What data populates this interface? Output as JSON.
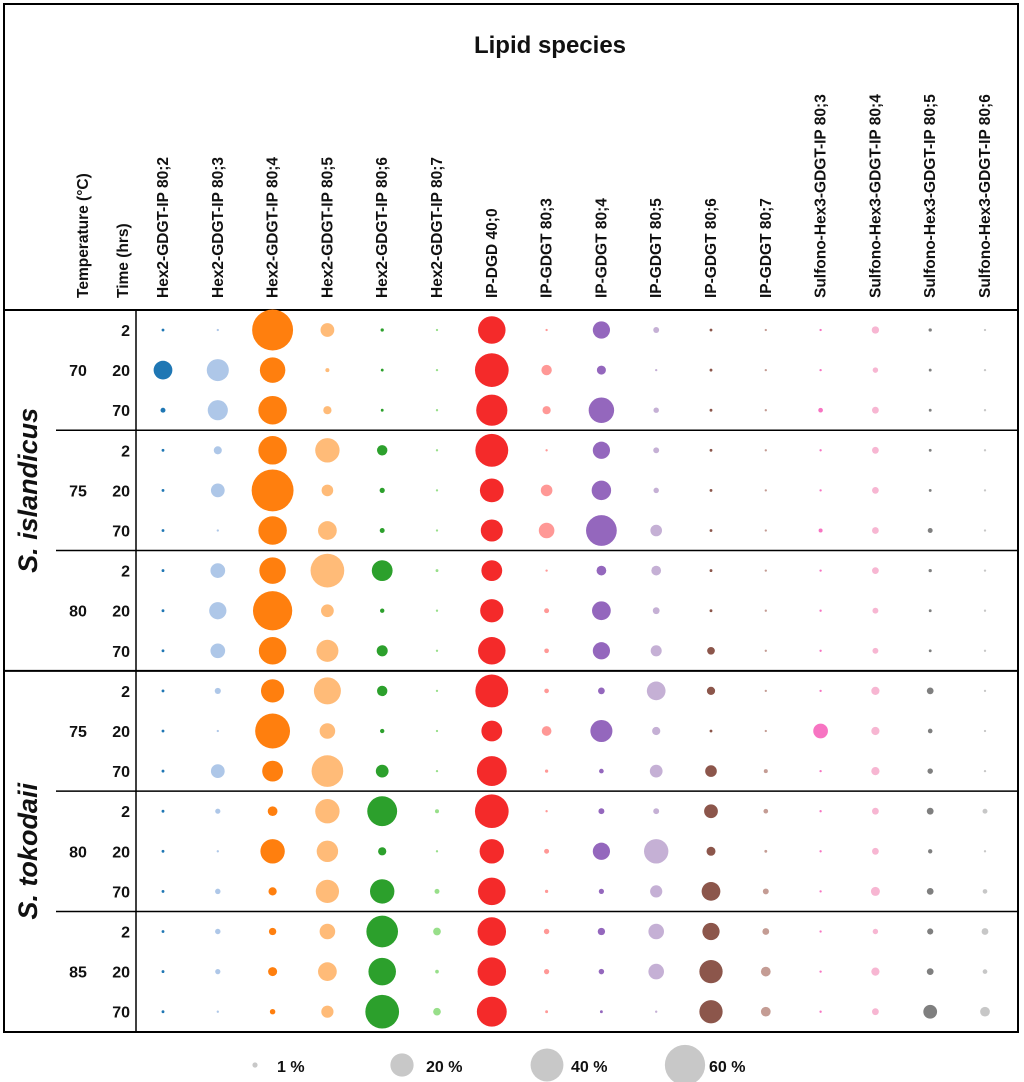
{
  "chart_data": {
    "type": "bubble",
    "title": "Lipid species",
    "row_headers": [
      "Temperature (°C)",
      "Time (hrs)"
    ],
    "columns": [
      "Hex2-GDGT-IP 80;2",
      "Hex2-GDGT-IP 80;3",
      "Hex2-GDGT-IP 80;4",
      "Hex2-GDGT-IP 80;5",
      "Hex2-GDGT-IP 80;6",
      "Hex2-GDGT-IP 80;7",
      "IP-DGD 40;0",
      "IP-GDGT 80;3",
      "IP-GDGT 80;4",
      "IP-GDGT 80;5",
      "IP-GDGT 80;6",
      "IP-GDGT 80;7",
      "Sulfono-Hex3-GDGT-IP 80;3",
      "Sulfono-Hex3-GDGT-IP 80;4",
      "Sulfono-Hex3-GDGT-IP 80;5",
      "Sulfono-Hex3-GDGT-IP 80;6"
    ],
    "column_colors": [
      "#1f77b4",
      "#aec7e8",
      "#ff7f0e",
      "#ffbb78",
      "#2ca02c",
      "#98df8a",
      "#f42a2a",
      "#ff9896",
      "#9467bd",
      "#c5b0d5",
      "#8c564b",
      "#c49c94",
      "#f774c2",
      "#f7b6d2",
      "#7f7f7f",
      "#c7c7c7"
    ],
    "species": [
      {
        "name": "S. islandicus",
        "groups": [
          {
            "temperature": "70",
            "rows": [
              {
                "time": "2",
                "values": [
                  0.3,
                  0.2,
                  62,
                  7,
                  0.4,
                  0.2,
                  28,
                  0.2,
                  11,
                  1.3,
                  0.3,
                  0.2,
                  0.2,
                  2,
                  0.4,
                  0.2
                ]
              },
              {
                "time": "20",
                "values": [
                  13,
                  18,
                  24,
                  0.6,
                  0.3,
                  0.2,
                  42,
                  4,
                  3,
                  0.2,
                  0.3,
                  0.2,
                  0.2,
                  1.1,
                  0.3,
                  0.2
                ]
              },
              {
                "time": "70",
                "values": [
                  0.9,
                  15,
                  30,
                  2.5,
                  0.3,
                  0.2,
                  36,
                  2.5,
                  24,
                  1.1,
                  0.3,
                  0.2,
                  0.8,
                  1.7,
                  0.3,
                  0.2
                ]
              }
            ]
          },
          {
            "temperature": "75",
            "rows": [
              {
                "time": "2",
                "values": [
                  0.3,
                  2.4,
                  30,
                  22,
                  4,
                  0.2,
                  40,
                  0.2,
                  11,
                  1.3,
                  0.3,
                  0.2,
                  0.2,
                  1.7,
                  0.3,
                  0.2
                ]
              },
              {
                "time": "20",
                "values": [
                  0.3,
                  7,
                  65,
                  5,
                  1,
                  0.2,
                  21,
                  5,
                  14,
                  1.1,
                  0.3,
                  0.2,
                  0.2,
                  1.7,
                  0.3,
                  0.2
                ]
              },
              {
                "time": "70",
                "values": [
                  0.3,
                  0.2,
                  30,
                  13,
                  0.9,
                  0.2,
                  18,
                  9,
                  35,
                  5,
                  0.3,
                  0.2,
                  0.6,
                  1.7,
                  0.9,
                  0.2
                ]
              }
            ]
          },
          {
            "temperature": "80",
            "rows": [
              {
                "time": "2",
                "values": [
                  0.3,
                  8,
                  26,
                  42,
                  16,
                  0.3,
                  16,
                  0.2,
                  3.5,
                  3.5,
                  0.3,
                  0.2,
                  0.2,
                  1.7,
                  0.4,
                  0.2
                ]
              },
              {
                "time": "20",
                "values": [
                  0.3,
                  11,
                  57,
                  6,
                  0.7,
                  0.2,
                  20,
                  0.9,
                  13,
                  1.7,
                  0.3,
                  0.2,
                  0.2,
                  1.3,
                  0.3,
                  0.2
                ]
              },
              {
                "time": "70",
                "values": [
                  0.3,
                  8,
                  28,
                  18,
                  4.5,
                  0.2,
                  28,
                  0.8,
                  11,
                  4.5,
                  2.2,
                  0.2,
                  0.2,
                  1.3,
                  0.3,
                  0.2
                ]
              }
            ]
          }
        ]
      },
      {
        "name": "S. tokodaii",
        "groups": [
          {
            "temperature": "75",
            "rows": [
              {
                "time": "2",
                "values": [
                  0.3,
                  1.4,
                  20,
                  27,
                  4,
                  0.2,
                  40,
                  0.8,
                  1.7,
                  13,
                  2.5,
                  0.2,
                  0.2,
                  2.5,
                  1.7,
                  0.2
                ]
              },
              {
                "time": "20",
                "values": [
                  0.3,
                  0.2,
                  45,
                  9,
                  0.7,
                  0.2,
                  16,
                  3.5,
                  18,
                  2.5,
                  0.3,
                  0.2,
                  8,
                  2.5,
                  0.8,
                  0.2
                ]
              },
              {
                "time": "70",
                "values": [
                  0.3,
                  7,
                  16,
                  37,
                  6,
                  0.2,
                  33,
                  0.4,
                  0.8,
                  6,
                  5,
                  0.6,
                  0.2,
                  2.5,
                  1.1,
                  0.2
                ]
              }
            ]
          },
          {
            "temperature": "80",
            "rows": [
              {
                "time": "2",
                "values": [
                  0.3,
                  1,
                  3.5,
                  22,
                  33,
                  0.6,
                  42,
                  0.2,
                  1.3,
                  1.3,
                  7,
                  0.8,
                  0.2,
                  1.7,
                  1.7,
                  0.9
                ]
              },
              {
                "time": "20",
                "values": [
                  0.3,
                  0.2,
                  22,
                  17,
                  2.5,
                  0.2,
                  22,
                  0.9,
                  11,
                  22,
                  3,
                  0.3,
                  0.2,
                  1.7,
                  0.7,
                  0.2
                ]
              },
              {
                "time": "70",
                "values": [
                  0.3,
                  1.1,
                  2.5,
                  20,
                  22,
                  0.9,
                  28,
                  0.4,
                  1,
                  5.5,
                  13,
                  1.3,
                  0.2,
                  3,
                  1.7,
                  0.8
                ]
              }
            ]
          },
          {
            "temperature": "85",
            "rows": [
              {
                "time": "2",
                "values": [
                  0.3,
                  1.1,
                  2,
                  9,
                  37,
                  2.2,
                  30,
                  1.1,
                  2,
                  9,
                  11,
                  1.7,
                  0.2,
                  1.1,
                  1.4,
                  1.7
                ]
              },
              {
                "time": "20",
                "values": [
                  0.3,
                  1,
                  3,
                  13,
                  28,
                  0.5,
                  30,
                  1,
                  1.1,
                  9,
                  20,
                  3.5,
                  0.2,
                  2.5,
                  1.7,
                  0.8
                ]
              },
              {
                "time": "70",
                "values": [
                  0.3,
                  0.2,
                  1.1,
                  5.5,
                  42,
                  2.2,
                  33,
                  0.3,
                  0.3,
                  0.2,
                  20,
                  3.5,
                  0.2,
                  1.7,
                  7,
                  3.5
                ]
              }
            ]
          }
        ]
      }
    ],
    "legend": {
      "values": [
        1,
        20,
        40,
        60
      ],
      "labels": [
        "1 %",
        "20 %",
        "40 %",
        "60 %"
      ],
      "color": "#c8c8c8"
    }
  }
}
